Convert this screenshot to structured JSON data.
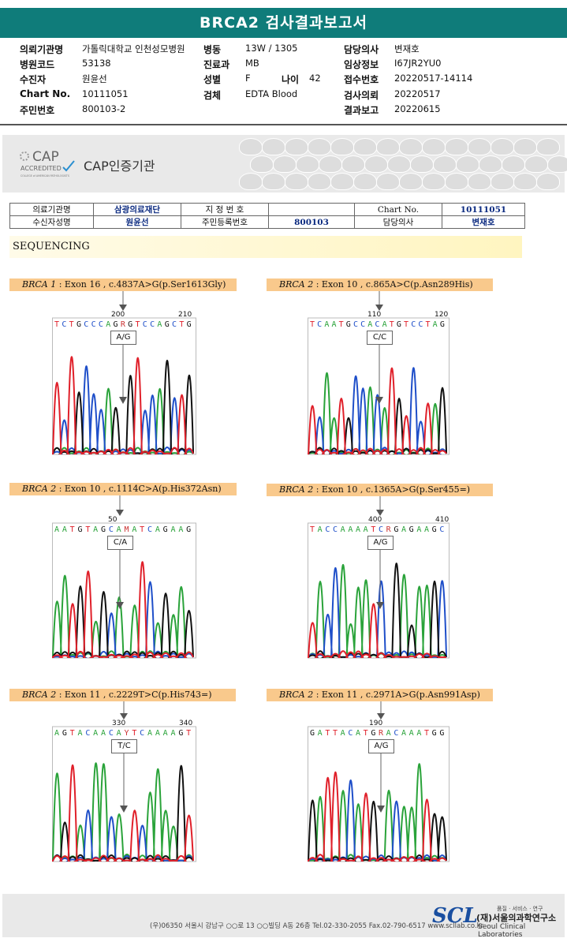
{
  "title": "BRCA2 검사결과보고서",
  "header": {
    "col1": [
      {
        "label": "의뢰기관명",
        "value": "가톨릭대학교 인천성모병원"
      },
      {
        "label": "병원코드",
        "value": "53138"
      },
      {
        "label": "수진자",
        "value": "원윤선"
      },
      {
        "label": "Chart No.",
        "value": "10111051"
      },
      {
        "label": "주민번호",
        "value": "800103-2"
      }
    ],
    "col2": [
      {
        "label": "병동",
        "value": "13W / 1305"
      },
      {
        "label": "진료과",
        "value": "MB"
      },
      {
        "label": "성별",
        "value": "F"
      },
      {
        "label": "검체",
        "value": "EDTA Blood"
      }
    ],
    "age": {
      "label": "나이",
      "value": "42"
    },
    "col3": [
      {
        "label": "담당의사",
        "value": "변재호"
      },
      {
        "label": "임상정보",
        "value": "I67JR2YU0"
      },
      {
        "label": "접수번호",
        "value": "20220517-14114"
      },
      {
        "label": "검사의뢰",
        "value": "20220517"
      },
      {
        "label": "결과보고",
        "value": "20220615"
      }
    ]
  },
  "cap": {
    "logo_line1": "CAP",
    "logo_line2": "ACCREDITED",
    "logo_line3": "COLLEGE of AMERICAN PATHOLOGISTS",
    "label": "CAP인증기관"
  },
  "lab_table": {
    "r1": {
      "k1": "의료기관명",
      "v1": "삼광의료재단",
      "k2": "지 정 번 호",
      "v2": "",
      "k3": "Chart No.",
      "v3": "10111051"
    },
    "r2": {
      "k1": "수신자성명",
      "v1": "원윤선",
      "k2": "주민등록번호",
      "v2": "800103",
      "k3": "담당의사",
      "v3": "변재호"
    }
  },
  "section_title": "SEQUENCING",
  "variants": [
    {
      "gene": "BRCA 1",
      "detail": " : Exon 16 , c.4837A>G(p.Ser1613Gly)",
      "seq": "TCTGCCCAGRGTCCAGCTG",
      "pos1": "200",
      "pos2": "210",
      "genotype": "A/G"
    },
    {
      "gene": "BRCA 2",
      "detail": " : Exon 10 , c.865A>C(p.Asn289His)",
      "seq": "TCAATGCCACATGTCCTAG",
      "pos1": "110",
      "pos2": "120",
      "genotype": "C/C"
    },
    {
      "gene": "BRCA 2",
      "detail": " : Exon 10 , c.1114C>A(p.His372Asn)",
      "seq": "AATGTAGCAMATCAGAAG",
      "pos1": "50",
      "pos2": "",
      "genotype": "C/A"
    },
    {
      "gene": "BRCA 2",
      "detail": " : Exon 10 , c.1365A>G(p.Ser455=)",
      "seq": "TACCAAAATCRGAGAAGC",
      "pos1": "400",
      "pos2": "410",
      "genotype": "A/G"
    },
    {
      "gene": "BRCA 2",
      "detail": " : Exon 11 , c.2229T>C(p.His743=)",
      "seq": "AGTACAACAYTCAAAAGT",
      "pos1": "330",
      "pos2": "340",
      "genotype": "T/C"
    },
    {
      "gene": "BRCA 2",
      "detail": " : Exon 11 , c.2971A>G(p.Asn991Asp)",
      "seq": "GATTACATGRACAAATGG",
      "pos1": "190",
      "pos2": "",
      "genotype": "A/G"
    }
  ],
  "footer": {
    "address": "(우)06350 서울시 강남구 ○○로 13 ○○빌딩 A동 26층  Tel.02-330-2055  Fax.02-790-6517  www.scllab.co.kr",
    "logo": "SCL",
    "tagline": "품질 · 서비스 · 연구",
    "name_ko": "(재)서울의과학연구소",
    "name_en": "Seoul Clinical Laboratories"
  },
  "colors": {
    "title_bg": "#0f7c7a",
    "label_bg": "#f9c98c",
    "A": "#2aa33a",
    "C": "#1f4fc9",
    "G": "#111111",
    "T": "#e0202a"
  }
}
